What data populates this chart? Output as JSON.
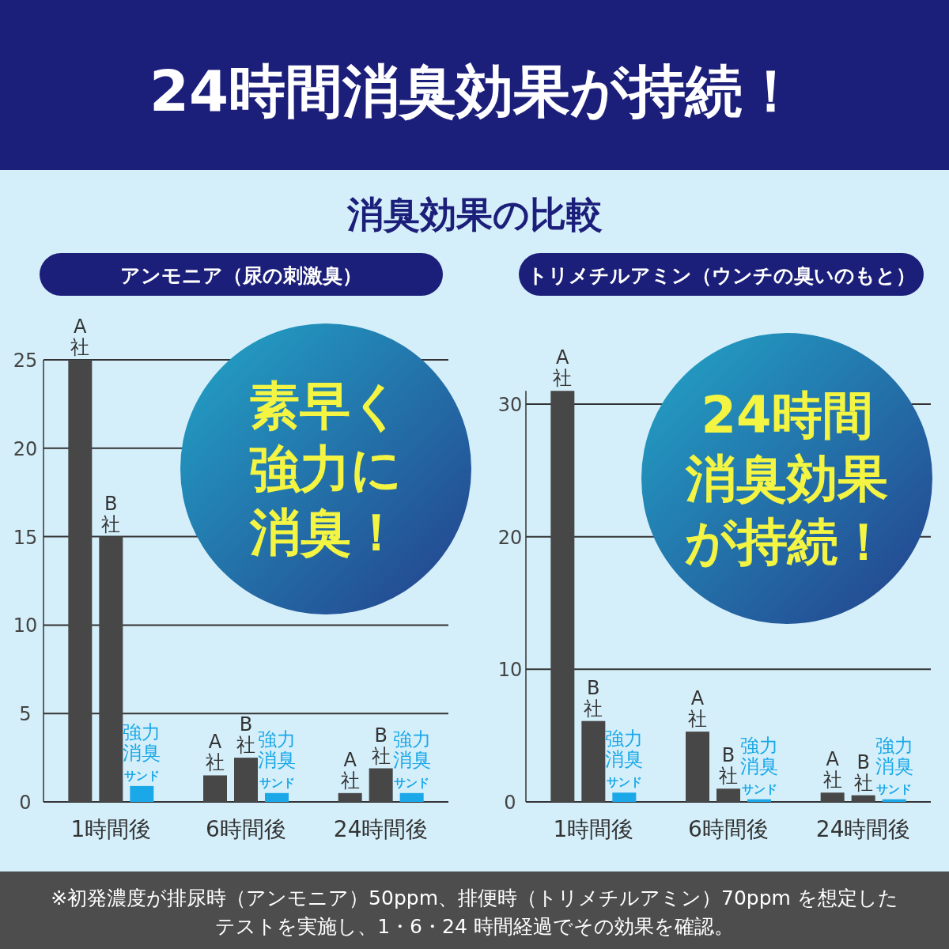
{
  "chart_data": [
    {
      "type": "bar",
      "title": "アンモニア（尿の刺激臭）",
      "categories": [
        "1時間後",
        "6時間後",
        "24時間後"
      ],
      "series": [
        {
          "name": "A社",
          "color": "#474747",
          "values": [
            25,
            1.5,
            0.5
          ]
        },
        {
          "name": "B社",
          "color": "#474747",
          "values": [
            15,
            2.5,
            1.9
          ]
        },
        {
          "name": "強力消臭サンド",
          "color": "#1aa8e8",
          "values": [
            0.9,
            0.5,
            0.5
          ]
        }
      ],
      "ylim": [
        0,
        25
      ],
      "yticks": [
        0,
        5,
        10,
        15,
        20,
        25
      ],
      "grid": "y",
      "annotations": [
        "24時間消臭効果が持続！",
        "消臭効果の比較",
        "素早く",
        "強力に",
        "消臭！",
        "※初発濃度が排尿時（アンモニア）50ppm、排便時（トリメチルアミン）70ppm を想定したテストを実施し、1・6・24 時間経過でその効果を確認。"
      ]
    },
    {
      "type": "bar",
      "title": "トリメチルアミン（ウンチの臭いのもと）",
      "categories": [
        "1時間後",
        "6時間後",
        "24時間後"
      ],
      "series": [
        {
          "name": "A社",
          "color": "#474747",
          "values": [
            31,
            5.3,
            0.7
          ]
        },
        {
          "name": "B社",
          "color": "#474747",
          "values": [
            6.1,
            1.0,
            0.5
          ]
        },
        {
          "name": "強力消臭サンド",
          "color": "#1aa8e8",
          "values": [
            0.7,
            0.2,
            0.2
          ]
        }
      ],
      "ylim": [
        0,
        31
      ],
      "yticks": [
        0,
        10,
        20,
        30
      ],
      "grid": "y",
      "annotations": [
        "24時間",
        "消臭効果",
        "が持続！"
      ]
    }
  ]
}
